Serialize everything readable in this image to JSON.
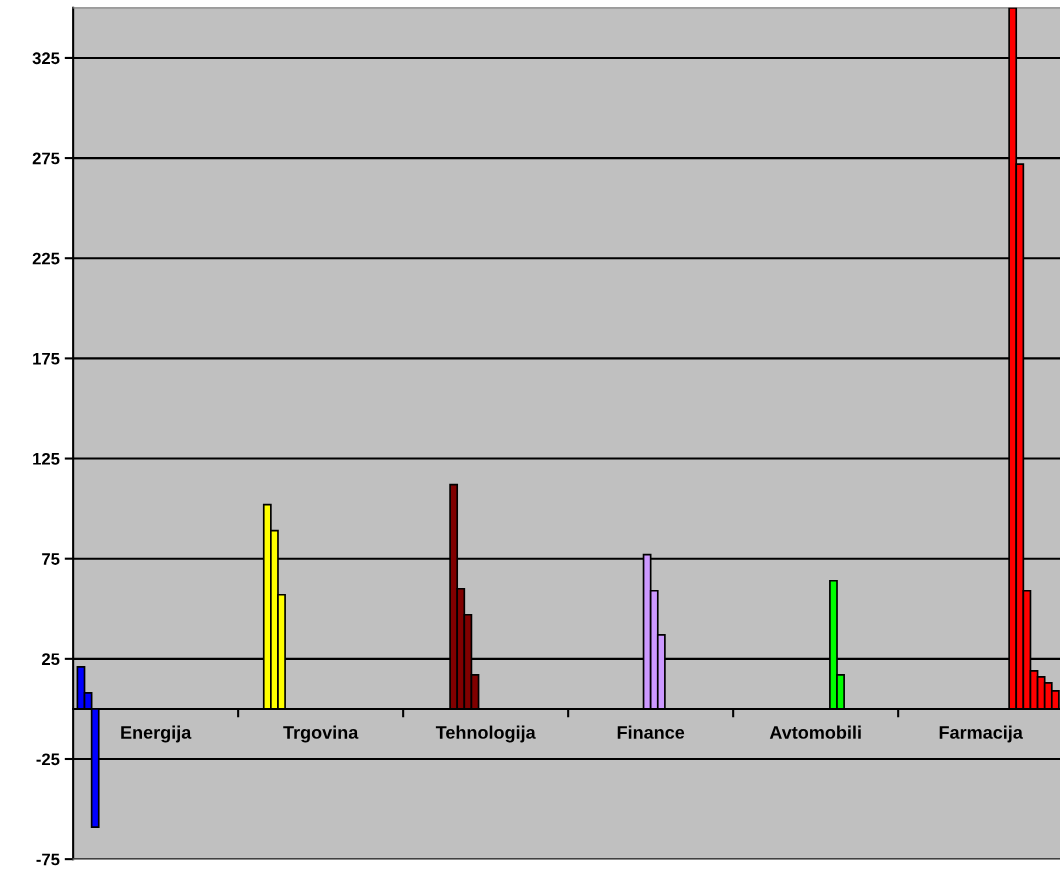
{
  "chart_data": {
    "type": "bar",
    "categories": [
      "Energija",
      "Trgovina",
      "Tehnologija",
      "Finance",
      "Avtomobili",
      "Farmacija"
    ],
    "series": [
      {
        "color": "#0000ff",
        "values": [
          21,
          null,
          null,
          null,
          null,
          null
        ]
      },
      {
        "color": "#0000ff",
        "values": [
          8,
          null,
          null,
          null,
          null,
          null
        ]
      },
      {
        "color": "#0000ff",
        "values": [
          -59,
          null,
          null,
          null,
          null,
          null
        ]
      },
      {
        "color": "#ffff00",
        "values": [
          null,
          102,
          null,
          null,
          null,
          null
        ]
      },
      {
        "color": "#ffff00",
        "values": [
          null,
          89,
          null,
          null,
          null,
          null
        ]
      },
      {
        "color": "#ffff00",
        "values": [
          null,
          57,
          null,
          null,
          null,
          null
        ]
      },
      {
        "color": "#800000",
        "values": [
          null,
          null,
          112,
          null,
          null,
          null
        ]
      },
      {
        "color": "#800000",
        "values": [
          null,
          null,
          60,
          null,
          null,
          null
        ]
      },
      {
        "color": "#800000",
        "values": [
          null,
          null,
          47,
          null,
          null,
          null
        ]
      },
      {
        "color": "#800000",
        "values": [
          null,
          null,
          17,
          null,
          null,
          null
        ]
      },
      {
        "color": "#cc99ff",
        "values": [
          null,
          null,
          null,
          77,
          null,
          null
        ]
      },
      {
        "color": "#cc99ff",
        "values": [
          null,
          null,
          null,
          59,
          null,
          null
        ]
      },
      {
        "color": "#cc99ff",
        "values": [
          null,
          null,
          null,
          37,
          null,
          null
        ]
      },
      {
        "color": "#00ff00",
        "values": [
          null,
          null,
          null,
          null,
          64,
          null
        ]
      },
      {
        "color": "#00ff00",
        "values": [
          null,
          null,
          null,
          null,
          17,
          null
        ]
      },
      {
        "color": "#ff0000",
        "values": [
          null,
          null,
          null,
          null,
          null,
          350
        ]
      },
      {
        "color": "#ff0000",
        "values": [
          null,
          null,
          null,
          null,
          null,
          272
        ]
      },
      {
        "color": "#ff0000",
        "values": [
          null,
          null,
          null,
          null,
          null,
          59
        ]
      },
      {
        "color": "#ff0000",
        "values": [
          null,
          null,
          null,
          null,
          null,
          19
        ]
      },
      {
        "color": "#ff0000",
        "values": [
          null,
          null,
          null,
          null,
          null,
          16
        ]
      },
      {
        "color": "#ff0000",
        "values": [
          null,
          null,
          null,
          null,
          null,
          13
        ]
      },
      {
        "color": "#ff0000",
        "values": [
          null,
          null,
          null,
          null,
          null,
          9
        ]
      }
    ],
    "ylim": [
      -75,
      350
    ],
    "yticks": [
      -75,
      -25,
      25,
      75,
      125,
      175,
      225,
      275,
      325
    ],
    "grid": "y",
    "legend": false
  }
}
